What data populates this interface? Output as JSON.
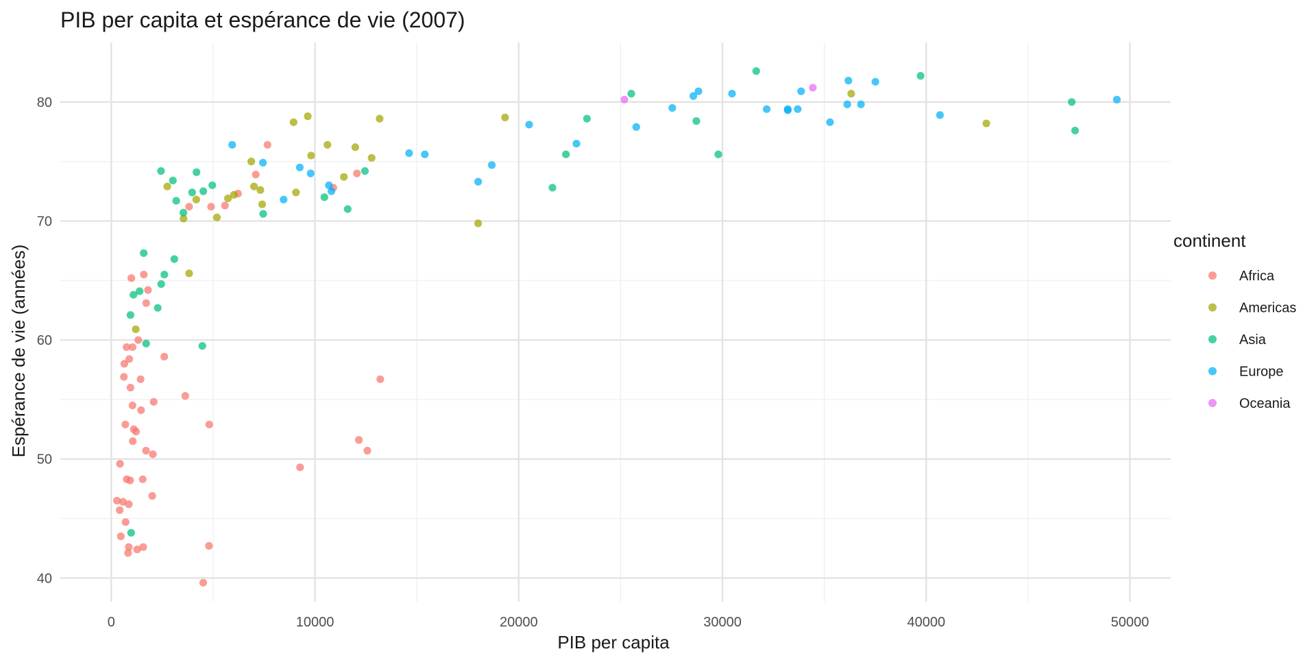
{
  "chart_data": {
    "type": "scatter",
    "title": "PIB per capita et espérance de vie (2007)",
    "xlabel": "PIB per capita",
    "ylabel": "Espérance de vie (années)",
    "xlim": [
      -2500,
      52000
    ],
    "ylim": [
      38,
      85
    ],
    "x_ticks": [
      0,
      10000,
      20000,
      30000,
      40000,
      50000
    ],
    "y_ticks": [
      40,
      50,
      60,
      70,
      80
    ],
    "grid": true,
    "legend": {
      "title": "continent",
      "position": "right"
    },
    "series": [
      {
        "name": "Africa",
        "color": "#F8766D",
        "points": [
          [
            6223,
            72.3
          ],
          [
            4797,
            42.7
          ],
          [
            1441,
            56.7
          ],
          [
            12570,
            50.7
          ],
          [
            1217,
            52.3
          ],
          [
            430,
            49.6
          ],
          [
            2042,
            50.4
          ],
          [
            706,
            44.7
          ],
          [
            1704,
            50.7
          ],
          [
            986,
            65.2
          ],
          [
            278,
            46.5
          ],
          [
            3633,
            55.3
          ],
          [
            1545,
            48.3
          ],
          [
            2082,
            54.8
          ],
          [
            5581,
            71.3
          ],
          [
            12154,
            51.6
          ],
          [
            641,
            58.0
          ],
          [
            691,
            52.9
          ],
          [
            13206,
            56.7
          ],
          [
            753,
            59.4
          ],
          [
            1327,
            60.0
          ],
          [
            943,
            56.0
          ],
          [
            579,
            46.4
          ],
          [
            1463,
            54.1
          ],
          [
            1569,
            42.6
          ],
          [
            415,
            45.7
          ],
          [
            12057,
            74.0
          ],
          [
            1045,
            59.4
          ],
          [
            759,
            48.3
          ],
          [
            1042,
            54.5
          ],
          [
            1803,
            64.2
          ],
          [
            4899,
            71.2
          ],
          [
            824,
            42.1
          ],
          [
            4811,
            52.9
          ],
          [
            620,
            56.9
          ],
          [
            2014,
            46.9
          ],
          [
            7670,
            76.4
          ],
          [
            863,
            46.2
          ],
          [
            1598,
            65.5
          ],
          [
            1712,
            63.1
          ],
          [
            862,
            42.6
          ],
          [
            926,
            48.2
          ],
          [
            9270,
            49.3
          ],
          [
            2602,
            58.6
          ],
          [
            4513,
            39.6
          ],
          [
            1107,
            52.5
          ],
          [
            883,
            58.4
          ],
          [
            7093,
            73.9
          ],
          [
            1056,
            51.5
          ],
          [
            1271,
            42.4
          ],
          [
            469,
            43.5
          ],
          [
            3821,
            71.2
          ],
          [
            10900,
            72.8
          ]
        ]
      },
      {
        "name": "Americas",
        "color": "#A3A500",
        "points": [
          [
            12779,
            75.3
          ],
          [
            3822,
            65.6
          ],
          [
            9066,
            72.4
          ],
          [
            36319,
            80.7
          ],
          [
            13172,
            78.6
          ],
          [
            7007,
            72.9
          ],
          [
            9645,
            78.8
          ],
          [
            8948,
            78.3
          ],
          [
            6025,
            72.2
          ],
          [
            6873,
            75.0
          ],
          [
            5728,
            71.9
          ],
          [
            5186,
            70.3
          ],
          [
            1202,
            60.9
          ],
          [
            3548,
            70.2
          ],
          [
            7321,
            72.6
          ],
          [
            11978,
            76.2
          ],
          [
            2749,
            72.9
          ],
          [
            9809,
            75.5
          ],
          [
            4173,
            71.8
          ],
          [
            7408,
            71.4
          ],
          [
            19329,
            78.7
          ],
          [
            18009,
            69.8
          ],
          [
            42952,
            78.2
          ],
          [
            10611,
            76.4
          ],
          [
            11416,
            73.7
          ]
        ]
      },
      {
        "name": "Asia",
        "color": "#00BF7D",
        "points": [
          [
            975,
            43.8
          ],
          [
            29796,
            75.6
          ],
          [
            1391,
            64.1
          ],
          [
            1713,
            59.7
          ],
          [
            4959,
            73.0
          ],
          [
            39725,
            82.2
          ],
          [
            2452,
            64.7
          ],
          [
            3541,
            70.7
          ],
          [
            11606,
            71.0
          ],
          [
            4471,
            59.5
          ],
          [
            25523,
            80.7
          ],
          [
            31656,
            82.6
          ],
          [
            4519,
            72.5
          ],
          [
            1593,
            67.3
          ],
          [
            23348,
            78.6
          ],
          [
            47307,
            77.6
          ],
          [
            10461,
            72.0
          ],
          [
            12452,
            74.2
          ],
          [
            3095,
            66.8
          ],
          [
            944,
            62.1
          ],
          [
            1091,
            63.8
          ],
          [
            22316,
            75.6
          ],
          [
            2605,
            65.5
          ],
          [
            3190,
            71.7
          ],
          [
            21655,
            72.8
          ],
          [
            47143,
            80.0
          ],
          [
            3970,
            72.4
          ],
          [
            4185,
            74.1
          ],
          [
            28718,
            78.4
          ],
          [
            7458,
            70.6
          ],
          [
            2442,
            74.2
          ],
          [
            3025,
            73.4
          ],
          [
            2281,
            62.7
          ]
        ]
      },
      {
        "name": "Europe",
        "color": "#00B0F6",
        "points": [
          [
            5937,
            76.4
          ],
          [
            36126,
            79.8
          ],
          [
            33693,
            79.4
          ],
          [
            7446,
            74.9
          ],
          [
            10681,
            73.0
          ],
          [
            14619,
            75.7
          ],
          [
            22834,
            76.5
          ],
          [
            35278,
            78.3
          ],
          [
            33207,
            79.3
          ],
          [
            30470,
            80.7
          ],
          [
            32170,
            79.4
          ],
          [
            27538,
            79.5
          ],
          [
            18009,
            73.3
          ],
          [
            36181,
            81.8
          ],
          [
            40676,
            78.9
          ],
          [
            28570,
            80.5
          ],
          [
            9254,
            74.5
          ],
          [
            36798,
            79.8
          ],
          [
            49357,
            80.2
          ],
          [
            15390,
            75.6
          ],
          [
            20510,
            78.1
          ],
          [
            10808,
            72.5
          ],
          [
            9787,
            74.0
          ],
          [
            18678,
            74.7
          ],
          [
            25768,
            77.9
          ],
          [
            28821,
            80.9
          ],
          [
            33860,
            80.9
          ],
          [
            37506,
            81.7
          ],
          [
            8458,
            71.8
          ],
          [
            33203,
            79.4
          ]
        ]
      },
      {
        "name": "Oceania",
        "color": "#E76BF3",
        "points": [
          [
            34435,
            81.2
          ],
          [
            25185,
            80.2
          ]
        ]
      }
    ]
  }
}
